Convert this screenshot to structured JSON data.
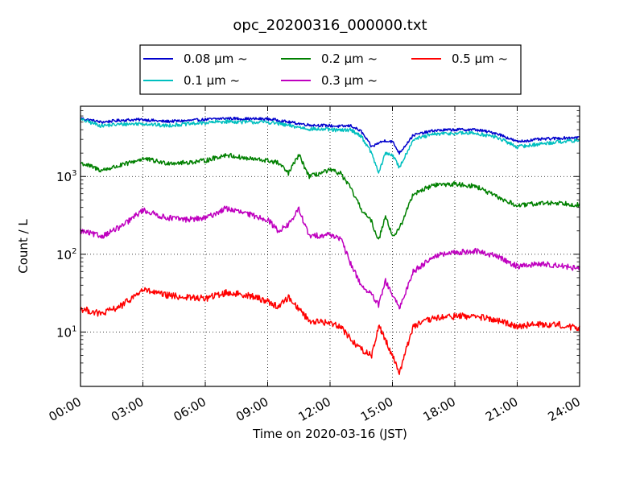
{
  "chart_data": {
    "type": "line",
    "title": "opc_20200316_000000.txt",
    "xlabel": "Time on 2020-03-16 (JST)",
    "ylabel": "Count / L",
    "yscale": "log",
    "ylim": [
      2,
      8000
    ],
    "xlim": [
      "00:00",
      "24:00"
    ],
    "grid": true,
    "grid_style": "dotted",
    "legend_position": "top, outside plot",
    "x_ticks": [
      "00:00",
      "03:00",
      "06:00",
      "09:00",
      "12:00",
      "15:00",
      "18:00",
      "21:00",
      "24:00"
    ],
    "y_ticks": [
      {
        "value": 10,
        "base": "10",
        "exp": "1"
      },
      {
        "value": 100,
        "base": "10",
        "exp": "2"
      },
      {
        "value": 1000,
        "base": "10",
        "exp": "3"
      }
    ],
    "x": [
      "00:00",
      "01:00",
      "02:00",
      "03:00",
      "04:00",
      "05:00",
      "06:00",
      "07:00",
      "08:00",
      "09:00",
      "09:30",
      "10:00",
      "10:30",
      "11:00",
      "12:00",
      "12:30",
      "13:00",
      "13:30",
      "14:00",
      "14:20",
      "14:40",
      "15:00",
      "15:20",
      "16:00",
      "17:00",
      "18:00",
      "19:00",
      "20:00",
      "21:00",
      "22:00",
      "23:00",
      "24:00"
    ],
    "series": [
      {
        "name": "0.08 μm ~",
        "color": "#0000cc",
        "values": [
          5600,
          5000,
          5300,
          5400,
          5100,
          5200,
          5400,
          5600,
          5500,
          5500,
          5300,
          5000,
          4800,
          4600,
          4500,
          4400,
          4500,
          3800,
          2400,
          2700,
          2900,
          2800,
          2000,
          3400,
          3900,
          4000,
          4000,
          3600,
          2800,
          3000,
          3100,
          3200
        ]
      },
      {
        "name": "0.1 μm ~",
        "color": "#00bfbf",
        "values": [
          5400,
          4500,
          4700,
          4800,
          4500,
          4700,
          4900,
          5100,
          5000,
          5000,
          4800,
          4500,
          4300,
          4100,
          4000,
          3900,
          4000,
          3300,
          2000,
          1100,
          2000,
          1900,
          1300,
          3000,
          3500,
          3600,
          3600,
          3200,
          2400,
          2600,
          2800,
          2900
        ]
      },
      {
        "name": "0.2 μm ~",
        "color": "#008000",
        "values": [
          1500,
          1200,
          1400,
          1700,
          1500,
          1500,
          1600,
          1900,
          1700,
          1600,
          1500,
          1100,
          1900,
          1000,
          1200,
          1100,
          700,
          380,
          260,
          150,
          320,
          170,
          210,
          600,
          780,
          800,
          750,
          550,
          420,
          450,
          460,
          430
        ]
      },
      {
        "name": "0.3 μm ~",
        "color": "#bf00bf",
        "values": [
          200,
          170,
          230,
          370,
          300,
          280,
          290,
          390,
          330,
          280,
          200,
          240,
          380,
          170,
          180,
          160,
          75,
          40,
          30,
          22,
          45,
          30,
          20,
          60,
          95,
          105,
          110,
          95,
          70,
          75,
          72,
          65
        ]
      },
      {
        "name": "0.5 μm ~",
        "color": "#ff0000",
        "values": [
          20,
          17,
          22,
          35,
          30,
          28,
          27,
          32,
          30,
          25,
          21,
          28,
          20,
          14,
          13,
          12,
          8,
          6,
          5,
          12,
          8,
          5,
          3,
          12,
          15,
          16,
          16,
          14,
          12,
          12.5,
          12.5,
          11
        ]
      }
    ]
  }
}
